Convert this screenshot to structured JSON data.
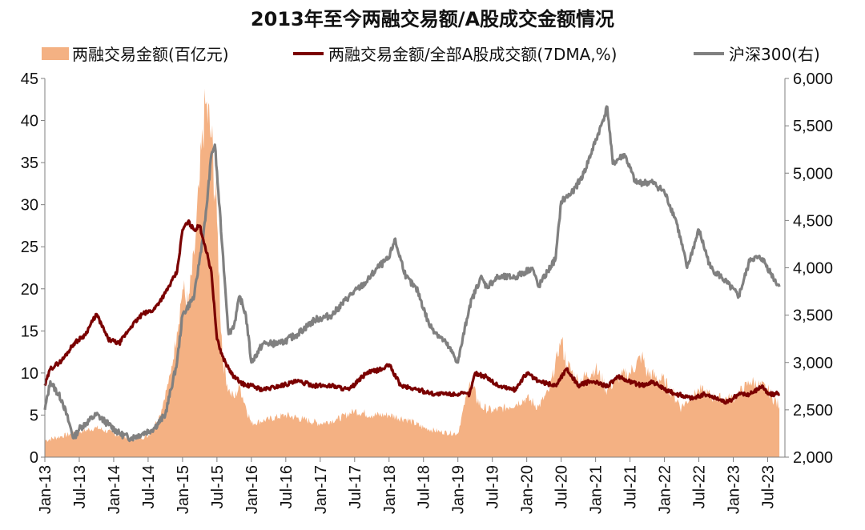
{
  "chart_data": {
    "type": "area+line",
    "title": "2013年至今两融交易额/A股成交金额情况",
    "xlabel": "",
    "ylabel": "",
    "x_tick_labels": [
      "Jan-13",
      "Jul-13",
      "Jan-14",
      "Jul-14",
      "Jan-15",
      "Jul-15",
      "Jan-16",
      "Jul-16",
      "Jan-17",
      "Jul-17",
      "Jan-18",
      "Jul-18",
      "Jan-19",
      "Jul-19",
      "Jan-20",
      "Jul-20",
      "Jan-21",
      "Jul-21",
      "Jan-22",
      "Jul-22",
      "Jan-23",
      "Jul-23"
    ],
    "y_left": {
      "ticks": [
        "0",
        "5",
        "10",
        "15",
        "20",
        "25",
        "30",
        "35",
        "40",
        "45"
      ],
      "ylim": [
        0,
        45
      ]
    },
    "y_right": {
      "ticks": [
        "2,000",
        "2,500",
        "3,000",
        "3,500",
        "4,000",
        "4,500",
        "5,000",
        "5,500",
        "6,000"
      ],
      "ylim": [
        2000,
        6000
      ]
    },
    "grid": false,
    "legend_position": "top",
    "colors": {
      "margin_volume": "#F4B183",
      "margin_share": "#7A0000",
      "csi300": "#808080"
    },
    "series": [
      {
        "name": "两融交易金额(百亿元)",
        "kind": "area",
        "axis": "left",
        "x": [
          2013.0,
          2013.25,
          2013.5,
          2013.75,
          2014.0,
          2014.25,
          2014.5,
          2014.67,
          2014.83,
          2014.92,
          2015.0,
          2015.08,
          2015.17,
          2015.25,
          2015.33,
          2015.42,
          2015.5,
          2015.58,
          2015.67,
          2015.75,
          2015.83,
          2015.92,
          2016.0,
          2016.25,
          2016.5,
          2016.75,
          2017.0,
          2017.25,
          2017.5,
          2017.75,
          2018.0,
          2018.25,
          2018.5,
          2018.75,
          2019.0,
          2019.17,
          2019.33,
          2019.5,
          2019.75,
          2020.0,
          2020.17,
          2020.33,
          2020.5,
          2020.58,
          2020.75,
          2021.0,
          2021.17,
          2021.33,
          2021.5,
          2021.67,
          2021.75,
          2022.0,
          2022.25,
          2022.5,
          2022.75,
          2023.0,
          2023.25,
          2023.5,
          2023.67
        ],
        "values": [
          2.0,
          2.5,
          3.0,
          3.5,
          2.8,
          2.2,
          2.5,
          5.0,
          10.0,
          15.0,
          20.0,
          18.0,
          24.0,
          33.0,
          42.0,
          38.0,
          28.0,
          12.0,
          8.0,
          7.0,
          8.5,
          6.0,
          4.0,
          4.5,
          5.0,
          4.5,
          4.0,
          4.5,
          5.5,
          5.0,
          5.0,
          4.5,
          3.5,
          3.0,
          2.8,
          9.0,
          6.0,
          5.5,
          6.0,
          7.0,
          6.0,
          8.0,
          14.0,
          11.0,
          9.0,
          10.5,
          8.0,
          9.5,
          10.0,
          12.0,
          10.0,
          9.0,
          6.0,
          8.0,
          7.0,
          7.0,
          9.0,
          8.0,
          6.0
        ]
      },
      {
        "name": "两融交易金额/全部A股成交额(7DMA,%)",
        "kind": "line",
        "axis": "left",
        "x": [
          2013.0,
          2013.08,
          2013.25,
          2013.42,
          2013.58,
          2013.75,
          2013.92,
          2014.08,
          2014.25,
          2014.42,
          2014.58,
          2014.75,
          2014.92,
          2015.0,
          2015.08,
          2015.17,
          2015.25,
          2015.33,
          2015.42,
          2015.5,
          2015.58,
          2015.67,
          2015.75,
          2015.83,
          2015.92,
          2016.0,
          2016.17,
          2016.42,
          2016.67,
          2016.92,
          2017.17,
          2017.42,
          2017.67,
          2017.92,
          2018.0,
          2018.17,
          2018.42,
          2018.67,
          2018.92,
          2019.17,
          2019.25,
          2019.42,
          2019.58,
          2019.83,
          2020.0,
          2020.17,
          2020.42,
          2020.58,
          2020.75,
          2020.92,
          2021.17,
          2021.33,
          2021.5,
          2021.67,
          2021.83,
          2022.0,
          2022.17,
          2022.42,
          2022.58,
          2022.75,
          2022.92,
          2023.08,
          2023.25,
          2023.42,
          2023.5,
          2023.67
        ],
        "values": [
          8.5,
          10.5,
          11.5,
          13.5,
          14.5,
          17.0,
          14.0,
          13.5,
          15.5,
          17.0,
          17.5,
          19.5,
          22.0,
          27.0,
          28.0,
          27.0,
          27.5,
          25.0,
          22.0,
          14.0,
          12.0,
          10.5,
          9.5,
          9.0,
          8.5,
          8.5,
          8.0,
          8.5,
          9.0,
          8.5,
          8.5,
          8.0,
          10.0,
          10.5,
          11.0,
          8.5,
          8.0,
          7.5,
          7.5,
          7.5,
          10.0,
          9.5,
          8.5,
          8.0,
          10.0,
          9.0,
          8.5,
          10.5,
          8.5,
          9.0,
          8.5,
          9.5,
          9.0,
          8.5,
          9.0,
          8.0,
          7.5,
          7.0,
          7.5,
          7.0,
          6.5,
          7.5,
          7.5,
          8.5,
          7.5,
          7.5
        ]
      },
      {
        "name": "沪深300(右)",
        "kind": "line",
        "axis": "right",
        "x": [
          2013.0,
          2013.08,
          2013.25,
          2013.42,
          2013.5,
          2013.75,
          2013.92,
          2014.08,
          2014.25,
          2014.42,
          2014.58,
          2014.75,
          2014.92,
          2015.0,
          2015.17,
          2015.33,
          2015.42,
          2015.47,
          2015.58,
          2015.67,
          2015.75,
          2015.83,
          2015.92,
          2016.0,
          2016.17,
          2016.42,
          2016.67,
          2016.92,
          2017.17,
          2017.42,
          2017.67,
          2017.83,
          2018.0,
          2018.08,
          2018.25,
          2018.42,
          2018.58,
          2018.83,
          2018.92,
          2019.0,
          2019.17,
          2019.33,
          2019.42,
          2019.58,
          2019.83,
          2020.08,
          2020.17,
          2020.42,
          2020.5,
          2020.67,
          2020.83,
          2021.08,
          2021.17,
          2021.25,
          2021.42,
          2021.58,
          2021.83,
          2022.0,
          2022.17,
          2022.33,
          2022.5,
          2022.67,
          2022.83,
          2023.08,
          2023.25,
          2023.42,
          2023.58,
          2023.67
        ],
        "values": [
          2500,
          2800,
          2600,
          2200,
          2300,
          2450,
          2350,
          2250,
          2200,
          2250,
          2300,
          2450,
          3000,
          3500,
          3700,
          4500,
          5200,
          5300,
          4200,
          3300,
          3400,
          3700,
          3500,
          3000,
          3200,
          3200,
          3300,
          3450,
          3500,
          3700,
          3850,
          4000,
          4100,
          4300,
          3900,
          3750,
          3400,
          3200,
          3100,
          3000,
          3600,
          3900,
          3800,
          3900,
          3900,
          4000,
          3800,
          4100,
          4700,
          4800,
          5000,
          5500,
          5700,
          5100,
          5200,
          4900,
          4900,
          4800,
          4500,
          4000,
          4400,
          4000,
          3900,
          3700,
          4100,
          4100,
          3900,
          3800
        ]
      }
    ]
  }
}
